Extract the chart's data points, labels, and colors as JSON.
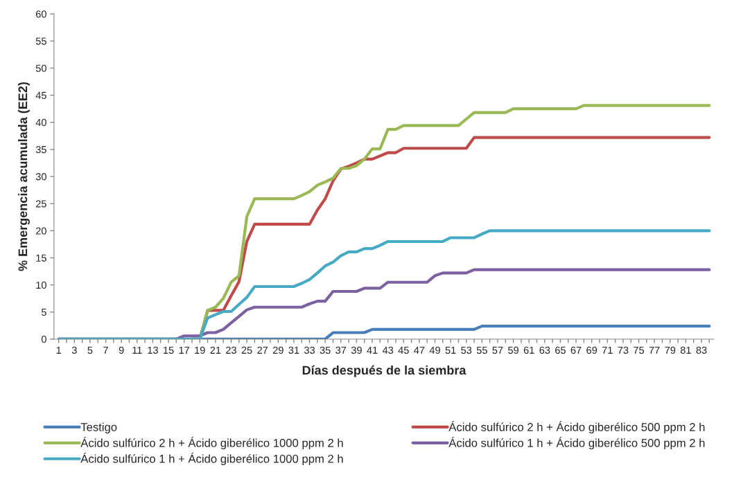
{
  "chart_data": {
    "type": "line",
    "xlabel": "Días después de la siembra",
    "ylabel": "% Emergencia acumulada (EE2)",
    "categories": [
      "1",
      null,
      "3",
      null,
      "5",
      null,
      "7",
      null,
      "9",
      null,
      "11",
      null,
      "13",
      null,
      "15",
      null,
      "17",
      null,
      "19",
      null,
      "21",
      null,
      "23",
      null,
      "25",
      null,
      "27",
      null,
      "29",
      null,
      "31",
      null,
      "33",
      null,
      "35",
      null,
      "37",
      null,
      "39",
      null,
      "41",
      null,
      "43",
      null,
      "45",
      null,
      "47",
      null,
      "49",
      null,
      "51",
      null,
      "53",
      null,
      "55",
      null,
      "57",
      null,
      "59",
      null,
      "61",
      null,
      "63",
      null,
      "65",
      null,
      "67",
      null,
      "69",
      null,
      "71",
      null,
      "73",
      null,
      "75",
      null,
      "77",
      null,
      "79",
      null,
      "81",
      null,
      "83",
      null
    ],
    "series": [
      {
        "name": "Testigo",
        "color": "#4a7ebb",
        "values": [
          0,
          0,
          0,
          0,
          0,
          0,
          0,
          0,
          0,
          0,
          0,
          0,
          0,
          0,
          0,
          0,
          0,
          0,
          0,
          0,
          0,
          0,
          0,
          0,
          0,
          0,
          0,
          0,
          0,
          0,
          0,
          0,
          0,
          0,
          0,
          1.2,
          1.2,
          1.2,
          1.2,
          1.2,
          1.8,
          1.8,
          1.8,
          1.8,
          1.8,
          1.8,
          1.8,
          1.8,
          1.8,
          1.8,
          1.8,
          1.8,
          1.8,
          1.8,
          2.4,
          2.4,
          2.4,
          2.4,
          2.4,
          2.4,
          2.4,
          2.4,
          2.4,
          2.4,
          2.4,
          2.4,
          2.4,
          2.4,
          2.4,
          2.4,
          2.4,
          2.4,
          2.4,
          2.4,
          2.4,
          2.4,
          2.4,
          2.4,
          2.4,
          2.4,
          2.4,
          2.4,
          2.4,
          2.4
        ]
      },
      {
        "name": "Ácido sulfúrico 2 h + Ácido giberélico 500 ppm 2 h",
        "color": "#be4b48",
        "values": [
          null,
          null,
          null,
          null,
          null,
          null,
          null,
          null,
          null,
          null,
          null,
          null,
          null,
          null,
          null,
          null,
          null,
          0,
          0,
          5.3,
          5.3,
          5.3,
          8.0,
          10.6,
          18.0,
          21.2,
          21.2,
          21.2,
          21.2,
          21.2,
          21.2,
          21.2,
          21.2,
          23.8,
          25.9,
          29.2,
          31.4,
          31.9,
          32.5,
          33.2,
          33.2,
          33.8,
          34.4,
          34.4,
          35.2,
          35.2,
          35.2,
          35.2,
          35.2,
          35.2,
          35.2,
          35.2,
          35.2,
          37.2,
          37.2,
          37.2,
          37.2,
          37.2,
          37.2,
          37.2,
          37.2,
          37.2,
          37.2,
          37.2,
          37.2,
          37.2,
          37.2,
          37.2,
          37.2,
          37.2,
          37.2,
          37.2,
          37.2,
          37.2,
          37.2,
          37.2,
          37.2,
          37.2,
          37.2,
          37.2,
          37.2,
          37.2,
          37.2,
          37.2
        ]
      },
      {
        "name": "Ácido sulfúrico 2 h + Ácido giberélico 1000 ppm 2 h",
        "color": "#98b954",
        "values": [
          null,
          null,
          null,
          null,
          null,
          null,
          null,
          null,
          null,
          null,
          null,
          null,
          null,
          null,
          null,
          null,
          null,
          0,
          0,
          5.3,
          5.9,
          7.5,
          10.5,
          11.7,
          22.6,
          25.9,
          25.9,
          25.9,
          25.9,
          25.9,
          25.9,
          26.5,
          27.2,
          28.4,
          29.0,
          29.7,
          31.5,
          31.5,
          32.0,
          33.2,
          35.1,
          35.1,
          38.7,
          38.7,
          39.4,
          39.4,
          39.4,
          39.4,
          39.4,
          39.4,
          39.4,
          39.4,
          40.6,
          41.8,
          41.8,
          41.8,
          41.8,
          41.8,
          42.5,
          42.5,
          42.5,
          42.5,
          42.5,
          42.5,
          42.5,
          42.5,
          42.5,
          43.1,
          43.1,
          43.1,
          43.1,
          43.1,
          43.1,
          43.1,
          43.1,
          43.1,
          43.1,
          43.1,
          43.1,
          43.1,
          43.1,
          43.1,
          43.1,
          43.1
        ]
      },
      {
        "name": "Ácido sulfúrico 1 h + Ácido giberélico 500 ppm 2 h",
        "color": "#7d60a0",
        "values": [
          0,
          0,
          0,
          0,
          0,
          0,
          0,
          0,
          0,
          0,
          0,
          0,
          0,
          0,
          0,
          0,
          0.6,
          0.6,
          0.6,
          1.2,
          1.2,
          1.8,
          3.0,
          4.2,
          5.4,
          5.9,
          5.9,
          5.9,
          5.9,
          5.9,
          5.9,
          5.9,
          6.5,
          7.0,
          7.0,
          8.8,
          8.8,
          8.8,
          8.8,
          9.4,
          9.4,
          9.4,
          10.5,
          10.5,
          10.5,
          10.5,
          10.5,
          10.5,
          11.7,
          12.2,
          12.2,
          12.2,
          12.2,
          12.8,
          12.8,
          12.8,
          12.8,
          12.8,
          12.8,
          12.8,
          12.8,
          12.8,
          12.8,
          12.8,
          12.8,
          12.8,
          12.8,
          12.8,
          12.8,
          12.8,
          12.8,
          12.8,
          12.8,
          12.8,
          12.8,
          12.8,
          12.8,
          12.8,
          12.8,
          12.8,
          12.8,
          12.8,
          12.8,
          12.8
        ]
      },
      {
        "name": "Ácido sulfúrico 1 h + Ácido giberélico 1000 ppm 2 h",
        "color": "#46aac5",
        "values": [
          0,
          0,
          0,
          0,
          0,
          0,
          0,
          0,
          0,
          0,
          0,
          0,
          0,
          0,
          0,
          0,
          0,
          0,
          0,
          3.9,
          4.5,
          5.1,
          5.1,
          6.4,
          7.7,
          9.7,
          9.7,
          9.7,
          9.7,
          9.7,
          9.7,
          10.3,
          11.0,
          12.2,
          13.5,
          14.2,
          15.4,
          16.1,
          16.1,
          16.7,
          16.7,
          17.3,
          18.0,
          18.0,
          18.0,
          18.0,
          18.0,
          18.0,
          18.0,
          18.0,
          18.7,
          18.7,
          18.7,
          18.7,
          19.4,
          20.0,
          20.0,
          20.0,
          20.0,
          20.0,
          20.0,
          20.0,
          20.0,
          20.0,
          20.0,
          20.0,
          20.0,
          20.0,
          20.0,
          20.0,
          20.0,
          20.0,
          20.0,
          20.0,
          20.0,
          20.0,
          20.0,
          20.0,
          20.0,
          20.0,
          20.0,
          20.0,
          20.0,
          20.0
        ]
      }
    ],
    "ylim": [
      0,
      60
    ],
    "yticks": [
      0,
      5,
      10,
      15,
      20,
      25,
      30,
      35,
      40,
      45,
      50,
      55,
      60
    ],
    "grid": false,
    "legend": "bottom",
    "marker": "none",
    "line_style": "solid"
  }
}
